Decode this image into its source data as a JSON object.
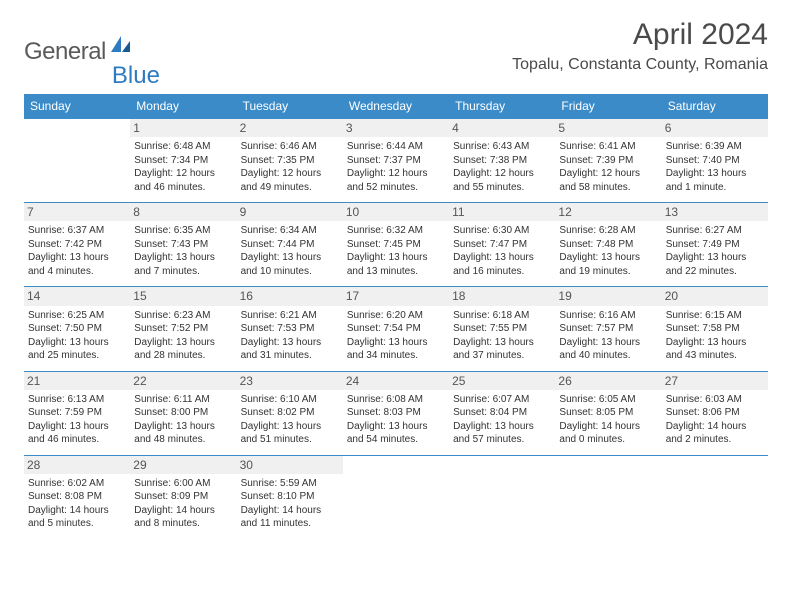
{
  "brand": {
    "name_gray": "General",
    "name_blue": "Blue"
  },
  "title": "April 2024",
  "location": "Topalu, Constanta County, Romania",
  "headers": [
    "Sunday",
    "Monday",
    "Tuesday",
    "Wednesday",
    "Thursday",
    "Friday",
    "Saturday"
  ],
  "colors": {
    "header_bg": "#3b8bc9",
    "header_text": "#ffffff",
    "border": "#3b8bc9",
    "daynum_bg": "#f0f0f0",
    "body_text": "#333333",
    "logo_gray": "#5a5a5a",
    "logo_blue": "#2f7bbf"
  },
  "weeks": [
    [
      null,
      {
        "d": "1",
        "sr": "Sunrise: 6:48 AM",
        "ss": "Sunset: 7:34 PM",
        "dl1": "Daylight: 12 hours",
        "dl2": "and 46 minutes."
      },
      {
        "d": "2",
        "sr": "Sunrise: 6:46 AM",
        "ss": "Sunset: 7:35 PM",
        "dl1": "Daylight: 12 hours",
        "dl2": "and 49 minutes."
      },
      {
        "d": "3",
        "sr": "Sunrise: 6:44 AM",
        "ss": "Sunset: 7:37 PM",
        "dl1": "Daylight: 12 hours",
        "dl2": "and 52 minutes."
      },
      {
        "d": "4",
        "sr": "Sunrise: 6:43 AM",
        "ss": "Sunset: 7:38 PM",
        "dl1": "Daylight: 12 hours",
        "dl2": "and 55 minutes."
      },
      {
        "d": "5",
        "sr": "Sunrise: 6:41 AM",
        "ss": "Sunset: 7:39 PM",
        "dl1": "Daylight: 12 hours",
        "dl2": "and 58 minutes."
      },
      {
        "d": "6",
        "sr": "Sunrise: 6:39 AM",
        "ss": "Sunset: 7:40 PM",
        "dl1": "Daylight: 13 hours",
        "dl2": "and 1 minute."
      }
    ],
    [
      {
        "d": "7",
        "sr": "Sunrise: 6:37 AM",
        "ss": "Sunset: 7:42 PM",
        "dl1": "Daylight: 13 hours",
        "dl2": "and 4 minutes."
      },
      {
        "d": "8",
        "sr": "Sunrise: 6:35 AM",
        "ss": "Sunset: 7:43 PM",
        "dl1": "Daylight: 13 hours",
        "dl2": "and 7 minutes."
      },
      {
        "d": "9",
        "sr": "Sunrise: 6:34 AM",
        "ss": "Sunset: 7:44 PM",
        "dl1": "Daylight: 13 hours",
        "dl2": "and 10 minutes."
      },
      {
        "d": "10",
        "sr": "Sunrise: 6:32 AM",
        "ss": "Sunset: 7:45 PM",
        "dl1": "Daylight: 13 hours",
        "dl2": "and 13 minutes."
      },
      {
        "d": "11",
        "sr": "Sunrise: 6:30 AM",
        "ss": "Sunset: 7:47 PM",
        "dl1": "Daylight: 13 hours",
        "dl2": "and 16 minutes."
      },
      {
        "d": "12",
        "sr": "Sunrise: 6:28 AM",
        "ss": "Sunset: 7:48 PM",
        "dl1": "Daylight: 13 hours",
        "dl2": "and 19 minutes."
      },
      {
        "d": "13",
        "sr": "Sunrise: 6:27 AM",
        "ss": "Sunset: 7:49 PM",
        "dl1": "Daylight: 13 hours",
        "dl2": "and 22 minutes."
      }
    ],
    [
      {
        "d": "14",
        "sr": "Sunrise: 6:25 AM",
        "ss": "Sunset: 7:50 PM",
        "dl1": "Daylight: 13 hours",
        "dl2": "and 25 minutes."
      },
      {
        "d": "15",
        "sr": "Sunrise: 6:23 AM",
        "ss": "Sunset: 7:52 PM",
        "dl1": "Daylight: 13 hours",
        "dl2": "and 28 minutes."
      },
      {
        "d": "16",
        "sr": "Sunrise: 6:21 AM",
        "ss": "Sunset: 7:53 PM",
        "dl1": "Daylight: 13 hours",
        "dl2": "and 31 minutes."
      },
      {
        "d": "17",
        "sr": "Sunrise: 6:20 AM",
        "ss": "Sunset: 7:54 PM",
        "dl1": "Daylight: 13 hours",
        "dl2": "and 34 minutes."
      },
      {
        "d": "18",
        "sr": "Sunrise: 6:18 AM",
        "ss": "Sunset: 7:55 PM",
        "dl1": "Daylight: 13 hours",
        "dl2": "and 37 minutes."
      },
      {
        "d": "19",
        "sr": "Sunrise: 6:16 AM",
        "ss": "Sunset: 7:57 PM",
        "dl1": "Daylight: 13 hours",
        "dl2": "and 40 minutes."
      },
      {
        "d": "20",
        "sr": "Sunrise: 6:15 AM",
        "ss": "Sunset: 7:58 PM",
        "dl1": "Daylight: 13 hours",
        "dl2": "and 43 minutes."
      }
    ],
    [
      {
        "d": "21",
        "sr": "Sunrise: 6:13 AM",
        "ss": "Sunset: 7:59 PM",
        "dl1": "Daylight: 13 hours",
        "dl2": "and 46 minutes."
      },
      {
        "d": "22",
        "sr": "Sunrise: 6:11 AM",
        "ss": "Sunset: 8:00 PM",
        "dl1": "Daylight: 13 hours",
        "dl2": "and 48 minutes."
      },
      {
        "d": "23",
        "sr": "Sunrise: 6:10 AM",
        "ss": "Sunset: 8:02 PM",
        "dl1": "Daylight: 13 hours",
        "dl2": "and 51 minutes."
      },
      {
        "d": "24",
        "sr": "Sunrise: 6:08 AM",
        "ss": "Sunset: 8:03 PM",
        "dl1": "Daylight: 13 hours",
        "dl2": "and 54 minutes."
      },
      {
        "d": "25",
        "sr": "Sunrise: 6:07 AM",
        "ss": "Sunset: 8:04 PM",
        "dl1": "Daylight: 13 hours",
        "dl2": "and 57 minutes."
      },
      {
        "d": "26",
        "sr": "Sunrise: 6:05 AM",
        "ss": "Sunset: 8:05 PM",
        "dl1": "Daylight: 14 hours",
        "dl2": "and 0 minutes."
      },
      {
        "d": "27",
        "sr": "Sunrise: 6:03 AM",
        "ss": "Sunset: 8:06 PM",
        "dl1": "Daylight: 14 hours",
        "dl2": "and 2 minutes."
      }
    ],
    [
      {
        "d": "28",
        "sr": "Sunrise: 6:02 AM",
        "ss": "Sunset: 8:08 PM",
        "dl1": "Daylight: 14 hours",
        "dl2": "and 5 minutes."
      },
      {
        "d": "29",
        "sr": "Sunrise: 6:00 AM",
        "ss": "Sunset: 8:09 PM",
        "dl1": "Daylight: 14 hours",
        "dl2": "and 8 minutes."
      },
      {
        "d": "30",
        "sr": "Sunrise: 5:59 AM",
        "ss": "Sunset: 8:10 PM",
        "dl1": "Daylight: 14 hours",
        "dl2": "and 11 minutes."
      },
      null,
      null,
      null,
      null
    ]
  ]
}
